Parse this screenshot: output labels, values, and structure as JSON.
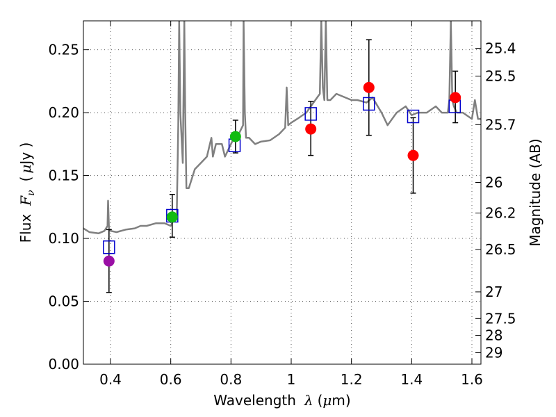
{
  "chart_data": {
    "type": "scatter",
    "xlim": [
      0.31,
      1.63
    ],
    "ylim": [
      0.0,
      0.273
    ],
    "grid": true,
    "x_ticks": [
      0.4,
      0.6,
      0.8,
      1.0,
      1.2,
      1.4,
      1.6
    ],
    "x_tick_labels": [
      "0.4",
      "0.6",
      "0.8",
      "1",
      "1.2",
      "1.4",
      "1.6"
    ],
    "y_ticks": [
      0.0,
      0.05,
      0.1,
      0.15,
      0.2,
      0.25
    ],
    "y_tick_labels": [
      "0.00",
      "0.05",
      "0.10",
      "0.15",
      "0.20",
      "0.25"
    ],
    "xlabel": {
      "prefix": "Wavelength",
      "symbol": "λ",
      "unit_open": "(",
      "unit_mu": "μ",
      "unit_rest": "m)"
    },
    "ylabel": {
      "prefix": "Flux",
      "symbol_base": "F",
      "symbol_sub": "ν",
      "unit_open": "(",
      "unit_mu": "μ",
      "unit_rest": "Jy )"
    },
    "y2label": "Magnitude (AB)",
    "y2_ticks": [
      {
        "label": "25.4",
        "flux": 0.2512
      },
      {
        "label": "25.5",
        "flux": 0.2291
      },
      {
        "label": "25.7",
        "flux": 0.1905
      },
      {
        "label": "26",
        "flux": 0.1445
      },
      {
        "label": "26.2",
        "flux": 0.1202
      },
      {
        "label": "26.5",
        "flux": 0.0912
      },
      {
        "label": "27",
        "flux": 0.0575
      },
      {
        "label": "27.5",
        "flux": 0.0363
      },
      {
        "label": "28",
        "flux": 0.0229
      },
      {
        "label": "29",
        "flux": 0.0091
      }
    ],
    "colors": {
      "model_line": "#808080",
      "model_points": "#0000cc",
      "violet": "#9a0fa5",
      "green": "#11bb11",
      "red": "#ff0000",
      "error_bars": "#000000",
      "grid": "#555555"
    },
    "series": [
      {
        "type": "line",
        "x": [
          0.31,
          0.33,
          0.36,
          0.38,
          0.39,
          0.392,
          0.395,
          0.4,
          0.42,
          0.45,
          0.48,
          0.5,
          0.52,
          0.55,
          0.58,
          0.6,
          0.61,
          0.62,
          0.625,
          0.628,
          0.632,
          0.64,
          0.645,
          0.648,
          0.652,
          0.66,
          0.68,
          0.7,
          0.72,
          0.73,
          0.735,
          0.74,
          0.75,
          0.77,
          0.78,
          0.8,
          0.81,
          0.82,
          0.83,
          0.84,
          0.842,
          0.846,
          0.85,
          0.86,
          0.88,
          0.9,
          0.93,
          0.96,
          0.98,
          0.985,
          0.99,
          1.0,
          1.02,
          1.05,
          1.08,
          1.095,
          1.1,
          1.105,
          1.11,
          1.115,
          1.12,
          1.13,
          1.15,
          1.18,
          1.2,
          1.22,
          1.25,
          1.27,
          1.3,
          1.32,
          1.35,
          1.38,
          1.4,
          1.42,
          1.45,
          1.48,
          1.5,
          1.52,
          1.525,
          1.53,
          1.535,
          1.54,
          1.55,
          1.57,
          1.6,
          1.61,
          1.62,
          1.63
        ],
        "y": [
          0.108,
          0.105,
          0.104,
          0.106,
          0.11,
          0.13,
          0.108,
          0.106,
          0.105,
          0.107,
          0.108,
          0.11,
          0.11,
          0.112,
          0.112,
          0.11,
          0.115,
          0.118,
          0.19,
          0.273,
          0.2,
          0.16,
          0.273,
          0.2,
          0.14,
          0.14,
          0.155,
          0.16,
          0.165,
          0.175,
          0.18,
          0.165,
          0.175,
          0.175,
          0.165,
          0.175,
          0.18,
          0.18,
          0.185,
          0.19,
          0.273,
          0.2,
          0.18,
          0.18,
          0.175,
          0.177,
          0.178,
          0.183,
          0.188,
          0.22,
          0.19,
          0.192,
          0.195,
          0.2,
          0.21,
          0.215,
          0.273,
          0.22,
          0.21,
          0.273,
          0.21,
          0.21,
          0.215,
          0.212,
          0.21,
          0.21,
          0.208,
          0.212,
          0.2,
          0.19,
          0.2,
          0.205,
          0.198,
          0.2,
          0.2,
          0.205,
          0.2,
          0.2,
          0.21,
          0.273,
          0.21,
          0.205,
          0.2,
          0.2,
          0.195,
          0.21,
          0.195,
          0.195
        ]
      },
      {
        "type": "scatter",
        "marker": "open-square",
        "x": [
          0.395,
          0.605,
          0.812,
          1.065,
          1.258,
          1.405,
          1.543
        ],
        "y": [
          0.093,
          0.118,
          0.174,
          0.199,
          0.207,
          0.197,
          0.205
        ]
      },
      {
        "type": "scatter",
        "marker": "filled-circle",
        "x": [
          0.395,
          0.605,
          0.815,
          1.065,
          1.258,
          1.405,
          1.545
        ],
        "y": [
          0.082,
          0.117,
          0.181,
          0.187,
          0.22,
          0.166,
          0.212
        ],
        "yerr_low": [
          0.057,
          0.101,
          0.168,
          0.166,
          0.182,
          0.136,
          0.192
        ],
        "yerr_high": [
          0.107,
          0.135,
          0.194,
          0.209,
          0.258,
          0.196,
          0.233
        ],
        "colors": [
          "violet",
          "green",
          "green",
          "red",
          "red",
          "red",
          "red"
        ]
      }
    ]
  }
}
